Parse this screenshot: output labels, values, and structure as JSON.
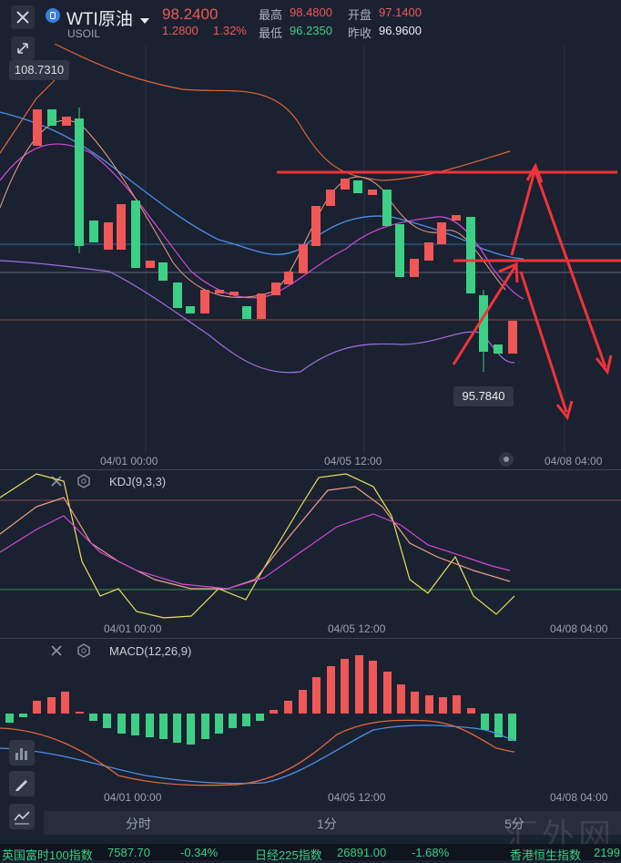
{
  "header": {
    "title": "WTI原油",
    "symbol": "USOIL",
    "price": "98.2400",
    "change": "1.2800",
    "change_pct": "1.32%",
    "high_label": "最高",
    "high": "98.4800",
    "open_label": "开盘",
    "open": "97.1400",
    "low_label": "最低",
    "low": "96.2350",
    "prev_label": "昨收",
    "prev": "96.9600"
  },
  "main_chart": {
    "high_marker": "108.7310",
    "low_marker": "95.7840",
    "x_ticks": [
      "04/01 00:00",
      "04/05 12:00",
      "04/08 04:00"
    ]
  },
  "kdj": {
    "label": "KDJ(9,3,3)",
    "x_ticks": [
      "04/01 00:00",
      "04/05 12:00",
      "04/08 04:00"
    ]
  },
  "macd": {
    "label": "MACD(12,26,9)",
    "x_ticks": [
      "04/01 00:00",
      "04/05 12:00",
      "04/08 04:00"
    ]
  },
  "timeframes": [
    "分时",
    "1分",
    "5分"
  ],
  "ticker": [
    {
      "name": "英国富时100指数",
      "value": "7587.70",
      "change": "-0.34%"
    },
    {
      "name": "日经225指数",
      "value": "26891.00",
      "change": "-1.68%"
    },
    {
      "name": "香港恒生指数",
      "value": "2199"
    }
  ],
  "watermark": "汇外网",
  "colors": {
    "up": "#f05757",
    "down": "#3ccf85",
    "bg": "#1a2130"
  },
  "chart_data": {
    "type": "candlestick",
    "title": "WTI原油",
    "x": [
      "04/01 00:00",
      "04/05 12:00",
      "04/08 04:00"
    ],
    "ylabel": "",
    "range_high": 108.731,
    "range_low": 95.784,
    "last": 98.24
  }
}
